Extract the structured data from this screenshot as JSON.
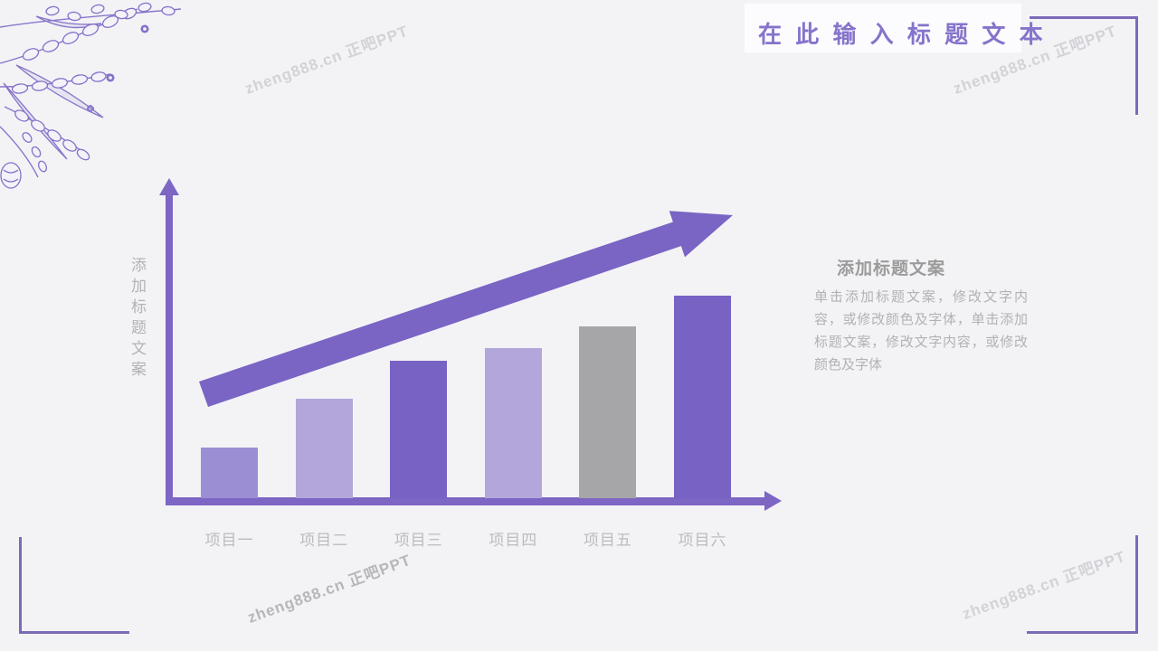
{
  "slide": {
    "title": "在 此 输 入 标 题 文 本",
    "background_color": "#f3f3f6",
    "accent_color": "#8673cb"
  },
  "watermark": {
    "text": "zheng888.cn 正吧PPT"
  },
  "chart_data": {
    "type": "bar",
    "title": "",
    "categories": [
      "项目一",
      "项目二",
      "项目三",
      "项目四",
      "项目五",
      "项目六"
    ],
    "values": [
      25,
      49,
      68,
      74,
      85,
      100
    ],
    "bar_colors": [
      "#9c8ed2",
      "#b2a6db",
      "#7862c4",
      "#b2a6db",
      "#a6a5a8",
      "#7862c4"
    ],
    "xlabel": "",
    "ylabel": "添加标题文案",
    "ylim": [
      0,
      150
    ],
    "grid": false,
    "legend": "none",
    "axis_color": "#7d66c4",
    "annotations": [
      "rising trend arrow from lower-left to upper-right"
    ]
  },
  "text_block": {
    "heading": "添加标题文案",
    "body": "单击添加标题文案，修改文字内容，或修改颜色及字体，单击添加标题文案，修改文字内容，或修改颜色及字体"
  }
}
